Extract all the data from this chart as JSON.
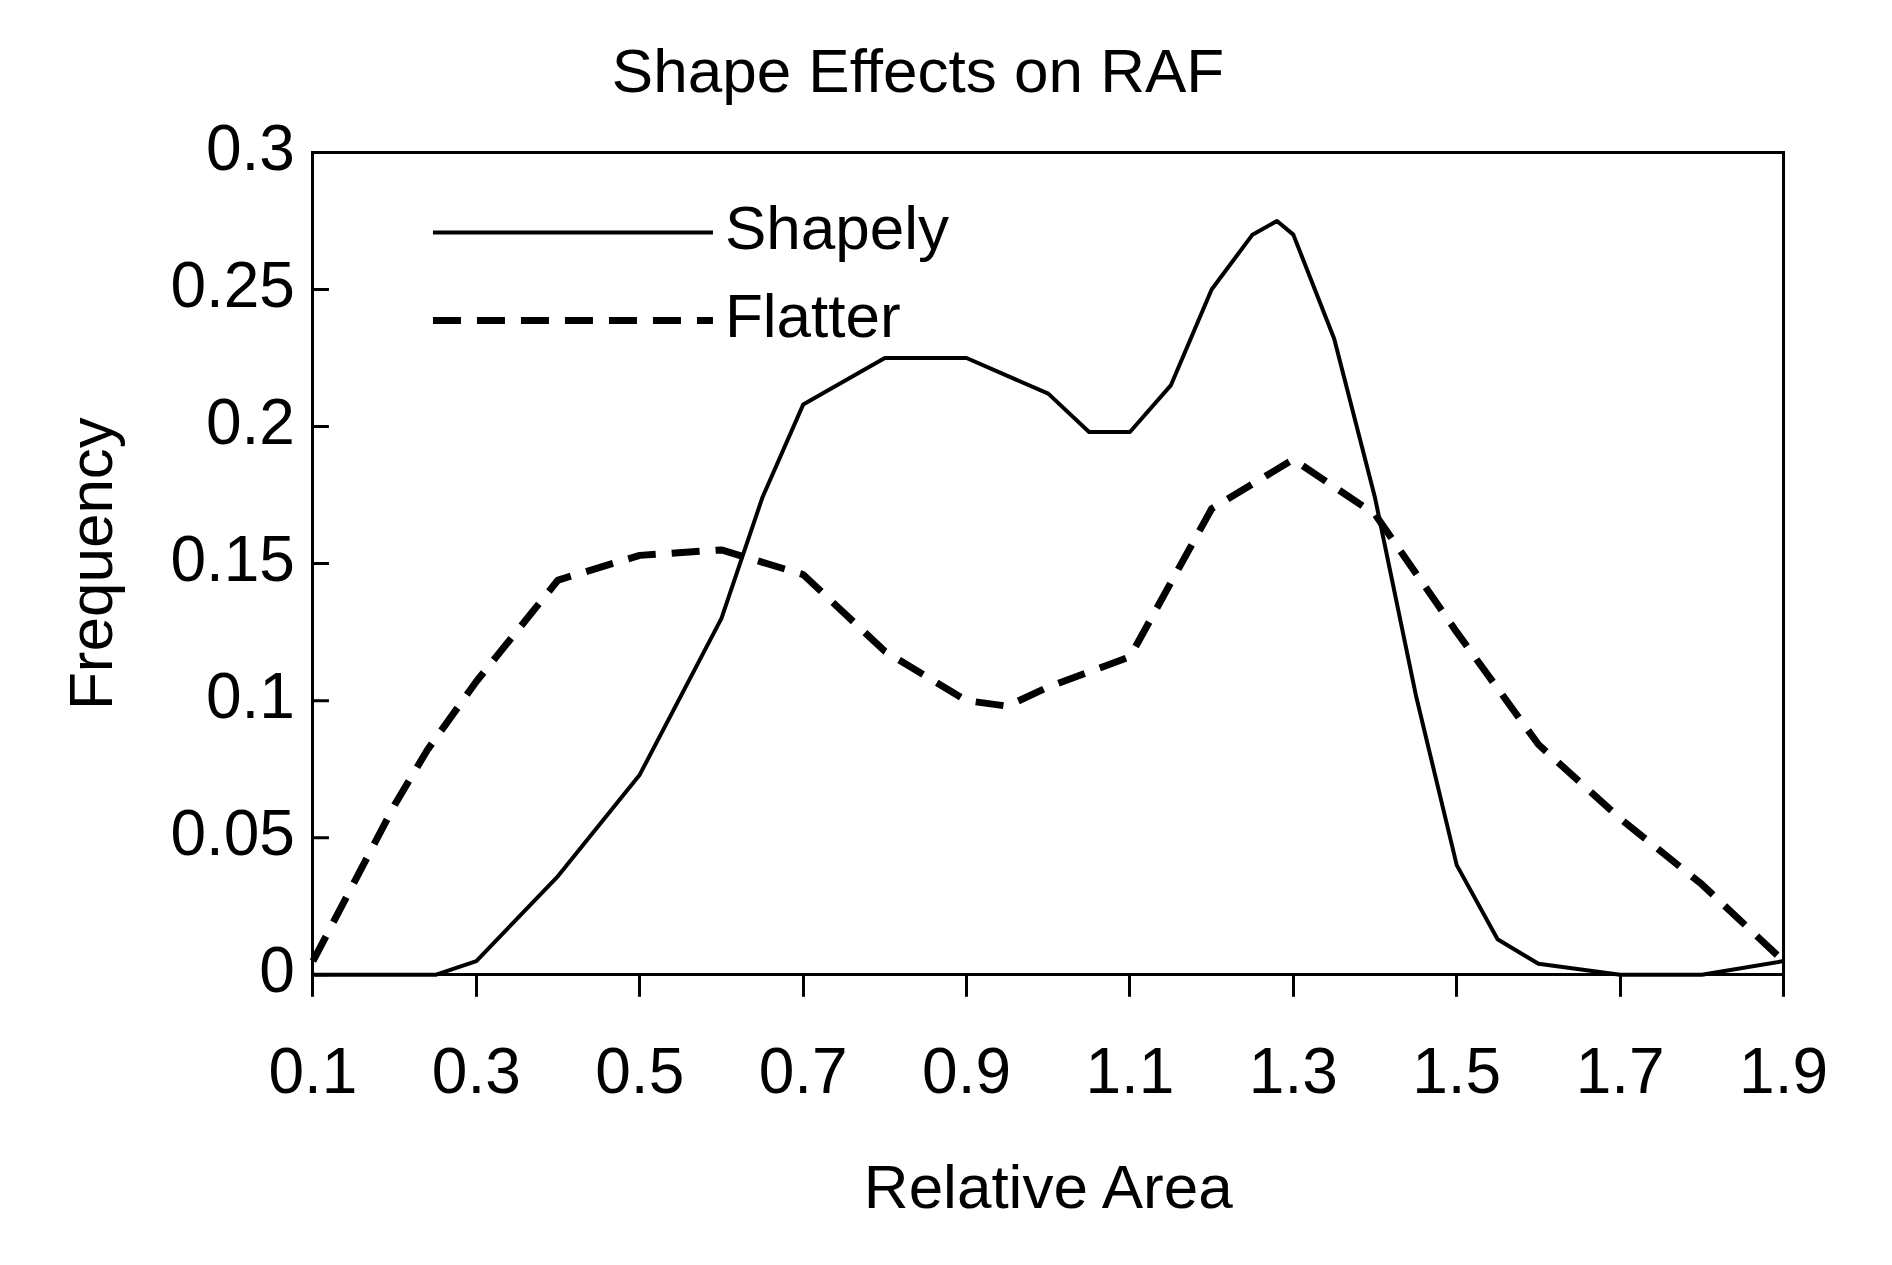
{
  "chart_data": {
    "type": "line",
    "title": "Shape Effects on RAF",
    "xlabel": "Relative Area",
    "ylabel": "Frequency",
    "xlim": [
      0.1,
      1.9
    ],
    "xticks": [
      0.1,
      0.3,
      0.5,
      0.7,
      0.9,
      1.1,
      1.3,
      1.5,
      1.7,
      1.9
    ],
    "ylim": [
      0,
      0.3
    ],
    "yticks": [
      0,
      0.05,
      0.1,
      0.15,
      0.2,
      0.25,
      0.3
    ],
    "grid": false,
    "legend": "top left",
    "marker": "none",
    "series": [
      {
        "name": "Shapely",
        "color": "#000000",
        "line_style": "solid",
        "x": [
          0.1,
          0.25,
          0.3,
          0.4,
          0.5,
          0.6,
          0.65,
          0.7,
          0.8,
          0.9,
          1.0,
          1.05,
          1.1,
          1.15,
          1.2,
          1.25,
          1.28,
          1.3,
          1.35,
          1.4,
          1.45,
          1.5,
          1.55,
          1.6,
          1.7,
          1.8,
          1.9
        ],
        "values": [
          0,
          0,
          0.005,
          0.036,
          0.073,
          0.13,
          0.174,
          0.208,
          0.225,
          0.225,
          0.212,
          0.198,
          0.198,
          0.215,
          0.25,
          0.27,
          0.275,
          0.27,
          0.232,
          0.174,
          0.102,
          0.04,
          0.013,
          0.004,
          0,
          0,
          0.005
        ]
      },
      {
        "name": "Flatter",
        "color": "#000000",
        "line_style": "dashed",
        "x": [
          0.1,
          0.2,
          0.24,
          0.3,
          0.4,
          0.5,
          0.6,
          0.7,
          0.8,
          0.9,
          0.95,
          1.0,
          1.1,
          1.2,
          1.3,
          1.4,
          1.5,
          1.6,
          1.7,
          1.8,
          1.9
        ],
        "values": [
          0.005,
          0.062,
          0.082,
          0.107,
          0.144,
          0.153,
          0.155,
          0.146,
          0.118,
          0.1,
          0.098,
          0.105,
          0.116,
          0.17,
          0.188,
          0.168,
          0.125,
          0.084,
          0.057,
          0.033,
          0.005
        ]
      }
    ]
  }
}
